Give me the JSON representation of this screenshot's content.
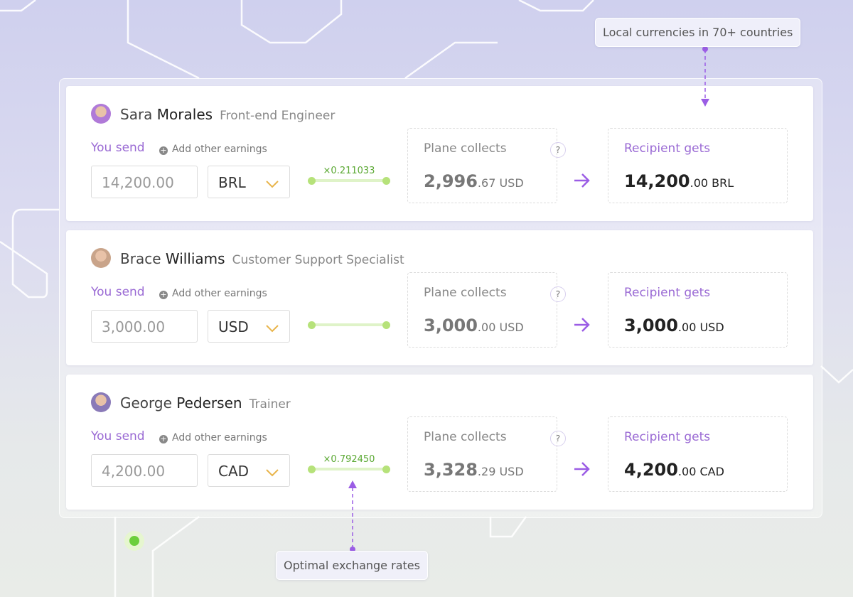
{
  "callouts": {
    "currencies": "Local currencies in 70+ countries",
    "rates": "Optimal exchange rates"
  },
  "rows": [
    {
      "first_name": "Sara",
      "last_name": "Morales",
      "role": "Front-end Engineer",
      "send_label": "You send",
      "add_earnings": "Add other earnings",
      "amount": "14,200.00",
      "currency": "BRL",
      "rate": "×0.211033",
      "collects_label": "Plane collects",
      "help": "?",
      "collects_whole": "2,996",
      "collects_cents": ".67",
      "collects_currency": "USD",
      "gets_label": "Recipient gets",
      "gets_whole": "14,200",
      "gets_cents": ".00",
      "gets_currency": "BRL"
    },
    {
      "first_name": "Brace",
      "last_name": "Williams",
      "role": "Customer Support Specialist",
      "send_label": "You send",
      "add_earnings": "Add other earnings",
      "amount": "3,000.00",
      "currency": "USD",
      "collects_label": "Plane collects",
      "help": "?",
      "collects_whole": "3,000",
      "collects_cents": ".00",
      "collects_currency": "USD",
      "gets_label": "Recipient gets",
      "gets_whole": "3,000",
      "gets_cents": ".00",
      "gets_currency": "USD"
    },
    {
      "first_name": "George",
      "last_name": "Pedersen",
      "role": "Trainer",
      "send_label": "You send",
      "add_earnings": "Add other earnings",
      "amount": "4,200.00",
      "currency": "CAD",
      "rate": "×0.792450",
      "collects_label": "Plane collects",
      "help": "?",
      "collects_whole": "3,328",
      "collects_cents": ".29",
      "collects_currency": "USD",
      "gets_label": "Recipient gets",
      "gets_whole": "4,200",
      "gets_cents": ".00",
      "gets_currency": "CAD"
    }
  ]
}
